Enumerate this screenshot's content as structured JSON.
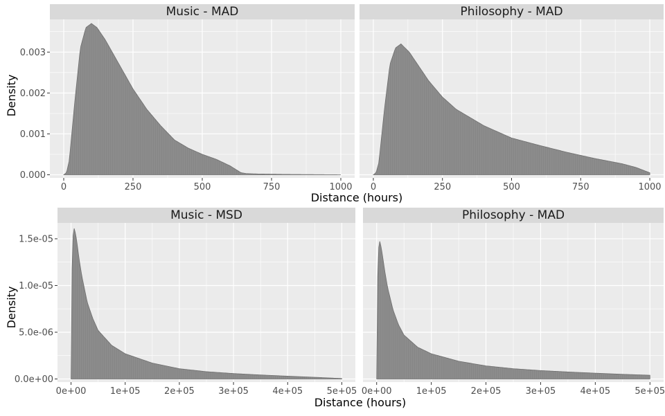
{
  "figure": {
    "top_xlabel": "Distance (hours)",
    "top_ylabel": "Density",
    "bottom_xlabel": "Distance (hours)",
    "bottom_ylabel": "Density"
  },
  "colors": {
    "panel_bg": "#ebebeb",
    "strip_bg": "#d9d9d9",
    "grid": "#ffffff",
    "fill": "#8c8c8c",
    "line": "#6e6e6e"
  },
  "chart_data": [
    {
      "type": "area",
      "title": "Music - MAD",
      "xlabel": "Distance (hours)",
      "ylabel": "Density",
      "xlim": [
        0,
        1000
      ],
      "ylim": [
        0,
        0.0038
      ],
      "xticks": [
        0,
        250,
        500,
        750,
        1000
      ],
      "xtick_labels": [
        "0",
        "250",
        "500",
        "750",
        "1000"
      ],
      "yticks": [
        0,
        0.001,
        0.002,
        0.003
      ],
      "ytick_labels": [
        "0.000",
        "0.001",
        "0.002",
        "0.003"
      ],
      "x": [
        0,
        10,
        20,
        40,
        60,
        80,
        100,
        120,
        150,
        200,
        250,
        300,
        350,
        400,
        450,
        500,
        550,
        600,
        640,
        660,
        700,
        800,
        900,
        1000
      ],
      "y": [
        0,
        5e-05,
        0.00035,
        0.0018,
        0.0031,
        0.0036,
        0.0037,
        0.0036,
        0.0033,
        0.0027,
        0.0021,
        0.0016,
        0.0012,
        0.00085,
        0.00065,
        0.0005,
        0.00038,
        0.00022,
        5e-05,
        3e-05,
        2e-05,
        1e-05,
        5e-06,
        0
      ]
    },
    {
      "type": "area",
      "title": "Philosophy - MAD",
      "xlabel": "Distance (hours)",
      "ylabel": "Density",
      "xlim": [
        0,
        1000
      ],
      "ylim": [
        0,
        0.0038
      ],
      "xticks": [
        0,
        250,
        500,
        750,
        1000
      ],
      "xtick_labels": [
        "0",
        "250",
        "500",
        "750",
        "1000"
      ],
      "yticks": [
        0,
        0.001,
        0.002,
        0.003
      ],
      "ytick_labels": [
        "0.000",
        "0.001",
        "0.002",
        "0.003"
      ],
      "x": [
        0,
        10,
        20,
        40,
        60,
        80,
        100,
        130,
        150,
        200,
        250,
        300,
        350,
        400,
        450,
        500,
        600,
        700,
        800,
        900,
        950,
        1000
      ],
      "y": [
        0,
        5e-05,
        0.0003,
        0.0016,
        0.0027,
        0.0031,
        0.0032,
        0.003,
        0.0028,
        0.0023,
        0.0019,
        0.0016,
        0.0014,
        0.0012,
        0.00105,
        0.0009,
        0.00072,
        0.00055,
        0.0004,
        0.00027,
        0.00018,
        5e-05
      ]
    },
    {
      "type": "area",
      "title": "Music - MSD",
      "xlabel": "Distance (hours)",
      "ylabel": "Density",
      "xlim": [
        0,
        500000
      ],
      "ylim": [
        0,
        1.67e-05
      ],
      "xticks": [
        0,
        100000,
        200000,
        300000,
        400000,
        500000
      ],
      "xtick_labels": [
        "0e+00",
        "1e+05",
        "2e+05",
        "3e+05",
        "4e+05",
        "5e+05"
      ],
      "yticks": [
        0,
        5e-06,
        1e-05,
        1.5e-05
      ],
      "ytick_labels": [
        "0.0e+00",
        "5.0e-06",
        "1.0e-05",
        "1.5e-05"
      ],
      "x": [
        0,
        1000,
        3000,
        6000,
        10000,
        15000,
        20000,
        30000,
        40000,
        50000,
        75000,
        100000,
        150000,
        200000,
        250000,
        300000,
        350000,
        400000,
        450000,
        500000
      ],
      "y": [
        0,
        9e-06,
        1.5e-05,
        1.62e-05,
        1.5e-05,
        1.28e-05,
        1.1e-05,
        8.2e-06,
        6.5e-06,
        5.2e-06,
        3.6e-06,
        2.7e-06,
        1.7e-06,
        1.1e-06,
        7.8e-07,
        5.8e-07,
        4.3e-07,
        3e-07,
        1.8e-07,
        5e-08
      ]
    },
    {
      "type": "area",
      "title": "Philosophy - MAD",
      "xlabel": "Distance (hours)",
      "ylabel": "Density",
      "xlim": [
        0,
        500000
      ],
      "ylim": [
        0,
        1.67e-05
      ],
      "xticks": [
        0,
        100000,
        200000,
        300000,
        400000,
        500000
      ],
      "xtick_labels": [
        "0e+00",
        "1e+05",
        "2e+05",
        "3e+05",
        "4e+05",
        "5e+05"
      ],
      "yticks": [
        0,
        5e-06,
        1e-05,
        1.5e-05
      ],
      "ytick_labels": [
        "0.0e+00",
        "5.0e-06",
        "1.0e-05",
        "1.5e-05"
      ],
      "x": [
        0,
        1000,
        3000,
        6000,
        10000,
        15000,
        20000,
        30000,
        40000,
        50000,
        75000,
        100000,
        150000,
        200000,
        250000,
        300000,
        350000,
        400000,
        450000,
        500000
      ],
      "y": [
        0,
        8.5e-06,
        1.38e-05,
        1.48e-05,
        1.35e-05,
        1.15e-05,
        9.8e-06,
        7.4e-06,
        5.8e-06,
        4.7e-06,
        3.4e-06,
        2.7e-06,
        1.9e-06,
        1.4e-06,
        1.1e-06,
        9e-07,
        7.5e-07,
        6.2e-07,
        5e-07,
        4e-07
      ]
    }
  ]
}
